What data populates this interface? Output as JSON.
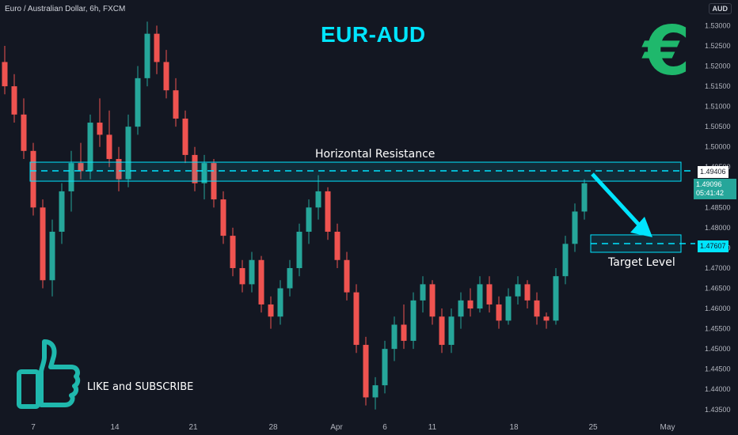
{
  "header": {
    "symbol": "Euro / Australian Dollar, 6h, FXCM",
    "title": "EUR-AUD",
    "currency": "AUD"
  },
  "annotations": {
    "resistance_label": "Horizontal Resistance",
    "target_label": "Target Level",
    "like_label": "LIKE and SUBSCRIBE"
  },
  "price_tags": {
    "resistance": "1.49406",
    "current": "1.49096",
    "countdown": "05:41:42",
    "target": "1.47607"
  },
  "icons": {
    "euro": "€",
    "thumb": "thumbs-up-icon"
  },
  "colors": {
    "background": "#131722",
    "up": "#26a69a",
    "down": "#ef5350",
    "accent": "#00e5ff",
    "euro": "#1fb86c",
    "current_price_bg": "#26a69a"
  },
  "chart_data": {
    "type": "candlestick",
    "title": "EUR-AUD",
    "y_ticks": [
      "1.53000",
      "1.52500",
      "1.52000",
      "1.51500",
      "1.51000",
      "1.50500",
      "1.50000",
      "1.49500",
      "1.49000",
      "1.48500",
      "1.48000",
      "1.47500",
      "1.47000",
      "1.46500",
      "1.46000",
      "1.45500",
      "1.45000",
      "1.44500",
      "1.44000",
      "1.43500"
    ],
    "x_ticks": [
      "7",
      "14",
      "21",
      "28",
      "Apr",
      "6",
      "11",
      "18",
      "25",
      "May"
    ],
    "ylim": [
      1.433,
      1.534
    ],
    "resistance_level": 1.49406,
    "target_level": 1.47607,
    "current_price": 1.49096,
    "candles": [
      {
        "o": 1.521,
        "h": 1.525,
        "l": 1.513,
        "c": 1.515
      },
      {
        "o": 1.515,
        "h": 1.518,
        "l": 1.506,
        "c": 1.508
      },
      {
        "o": 1.508,
        "h": 1.512,
        "l": 1.497,
        "c": 1.499
      },
      {
        "o": 1.499,
        "h": 1.501,
        "l": 1.483,
        "c": 1.485
      },
      {
        "o": 1.485,
        "h": 1.487,
        "l": 1.465,
        "c": 1.467
      },
      {
        "o": 1.467,
        "h": 1.482,
        "l": 1.463,
        "c": 1.479
      },
      {
        "o": 1.479,
        "h": 1.491,
        "l": 1.476,
        "c": 1.489
      },
      {
        "o": 1.489,
        "h": 1.499,
        "l": 1.484,
        "c": 1.496
      },
      {
        "o": 1.496,
        "h": 1.501,
        "l": 1.492,
        "c": 1.494
      },
      {
        "o": 1.494,
        "h": 1.508,
        "l": 1.492,
        "c": 1.506
      },
      {
        "o": 1.506,
        "h": 1.512,
        "l": 1.5,
        "c": 1.503
      },
      {
        "o": 1.503,
        "h": 1.509,
        "l": 1.495,
        "c": 1.497
      },
      {
        "o": 1.497,
        "h": 1.5,
        "l": 1.489,
        "c": 1.492
      },
      {
        "o": 1.492,
        "h": 1.508,
        "l": 1.49,
        "c": 1.505
      },
      {
        "o": 1.505,
        "h": 1.52,
        "l": 1.503,
        "c": 1.517
      },
      {
        "o": 1.517,
        "h": 1.531,
        "l": 1.515,
        "c": 1.528
      },
      {
        "o": 1.528,
        "h": 1.53,
        "l": 1.518,
        "c": 1.521
      },
      {
        "o": 1.521,
        "h": 1.524,
        "l": 1.512,
        "c": 1.514
      },
      {
        "o": 1.514,
        "h": 1.517,
        "l": 1.505,
        "c": 1.507
      },
      {
        "o": 1.507,
        "h": 1.509,
        "l": 1.496,
        "c": 1.498
      },
      {
        "o": 1.498,
        "h": 1.5,
        "l": 1.489,
        "c": 1.491
      },
      {
        "o": 1.491,
        "h": 1.498,
        "l": 1.487,
        "c": 1.496
      },
      {
        "o": 1.496,
        "h": 1.497,
        "l": 1.485,
        "c": 1.487
      },
      {
        "o": 1.487,
        "h": 1.489,
        "l": 1.476,
        "c": 1.478
      },
      {
        "o": 1.478,
        "h": 1.48,
        "l": 1.468,
        "c": 1.47
      },
      {
        "o": 1.47,
        "h": 1.472,
        "l": 1.464,
        "c": 1.466
      },
      {
        "o": 1.466,
        "h": 1.474,
        "l": 1.464,
        "c": 1.472
      },
      {
        "o": 1.472,
        "h": 1.473,
        "l": 1.459,
        "c": 1.461
      },
      {
        "o": 1.461,
        "h": 1.463,
        "l": 1.455,
        "c": 1.458
      },
      {
        "o": 1.458,
        "h": 1.467,
        "l": 1.456,
        "c": 1.465
      },
      {
        "o": 1.465,
        "h": 1.472,
        "l": 1.463,
        "c": 1.47
      },
      {
        "o": 1.47,
        "h": 1.481,
        "l": 1.468,
        "c": 1.479
      },
      {
        "o": 1.479,
        "h": 1.487,
        "l": 1.476,
        "c": 1.485
      },
      {
        "o": 1.485,
        "h": 1.493,
        "l": 1.482,
        "c": 1.489
      },
      {
        "o": 1.489,
        "h": 1.49,
        "l": 1.477,
        "c": 1.479
      },
      {
        "o": 1.479,
        "h": 1.481,
        "l": 1.47,
        "c": 1.472
      },
      {
        "o": 1.472,
        "h": 1.474,
        "l": 1.462,
        "c": 1.464
      },
      {
        "o": 1.464,
        "h": 1.466,
        "l": 1.449,
        "c": 1.451
      },
      {
        "o": 1.451,
        "h": 1.453,
        "l": 1.436,
        "c": 1.438
      },
      {
        "o": 1.438,
        "h": 1.443,
        "l": 1.435,
        "c": 1.441
      },
      {
        "o": 1.441,
        "h": 1.452,
        "l": 1.439,
        "c": 1.45
      },
      {
        "o": 1.45,
        "h": 1.458,
        "l": 1.447,
        "c": 1.456
      },
      {
        "o": 1.456,
        "h": 1.461,
        "l": 1.45,
        "c": 1.452
      },
      {
        "o": 1.452,
        "h": 1.464,
        "l": 1.45,
        "c": 1.462
      },
      {
        "o": 1.462,
        "h": 1.468,
        "l": 1.459,
        "c": 1.466
      },
      {
        "o": 1.466,
        "h": 1.467,
        "l": 1.456,
        "c": 1.458
      },
      {
        "o": 1.458,
        "h": 1.46,
        "l": 1.449,
        "c": 1.451
      },
      {
        "o": 1.451,
        "h": 1.46,
        "l": 1.449,
        "c": 1.458
      },
      {
        "o": 1.458,
        "h": 1.464,
        "l": 1.455,
        "c": 1.462
      },
      {
        "o": 1.462,
        "h": 1.465,
        "l": 1.458,
        "c": 1.46
      },
      {
        "o": 1.46,
        "h": 1.468,
        "l": 1.459,
        "c": 1.466
      },
      {
        "o": 1.466,
        "h": 1.468,
        "l": 1.459,
        "c": 1.461
      },
      {
        "o": 1.461,
        "h": 1.463,
        "l": 1.455,
        "c": 1.457
      },
      {
        "o": 1.457,
        "h": 1.465,
        "l": 1.456,
        "c": 1.463
      },
      {
        "o": 1.463,
        "h": 1.468,
        "l": 1.461,
        "c": 1.466
      },
      {
        "o": 1.466,
        "h": 1.467,
        "l": 1.46,
        "c": 1.462
      },
      {
        "o": 1.462,
        "h": 1.464,
        "l": 1.456,
        "c": 1.458
      },
      {
        "o": 1.458,
        "h": 1.459,
        "l": 1.455,
        "c": 1.457
      },
      {
        "o": 1.457,
        "h": 1.47,
        "l": 1.456,
        "c": 1.468
      },
      {
        "o": 1.468,
        "h": 1.478,
        "l": 1.466,
        "c": 1.476
      },
      {
        "o": 1.476,
        "h": 1.486,
        "l": 1.474,
        "c": 1.484
      },
      {
        "o": 1.484,
        "h": 1.492,
        "l": 1.482,
        "c": 1.491
      }
    ]
  }
}
